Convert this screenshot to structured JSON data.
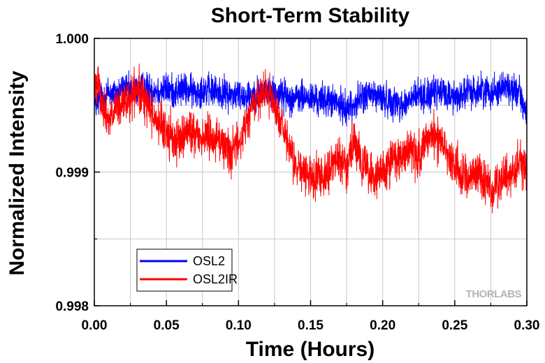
{
  "chart_data": {
    "type": "line",
    "title": "Short-Term Stability",
    "xlabel": "Time (Hours)",
    "ylabel": "Normalized Intensity",
    "xlim": [
      0.0,
      0.3
    ],
    "ylim": [
      0.998,
      1.0
    ],
    "x_ticks": [
      "0.00",
      "0.05",
      "0.10",
      "0.15",
      "0.20",
      "0.25",
      "0.30"
    ],
    "y_ticks": [
      "0.998",
      "0.999",
      "1.000"
    ],
    "grid": true,
    "legend_position": "bottom-left",
    "watermark": "THORLABS",
    "series": [
      {
        "name": "OSL2",
        "color": "#0000ff",
        "x": [
          0.0,
          0.005,
          0.01,
          0.015,
          0.02,
          0.025,
          0.03,
          0.035,
          0.04,
          0.045,
          0.05,
          0.055,
          0.06,
          0.065,
          0.07,
          0.075,
          0.08,
          0.085,
          0.09,
          0.095,
          0.1,
          0.105,
          0.11,
          0.115,
          0.12,
          0.125,
          0.13,
          0.135,
          0.14,
          0.145,
          0.15,
          0.155,
          0.16,
          0.165,
          0.17,
          0.175,
          0.18,
          0.185,
          0.19,
          0.195,
          0.2,
          0.205,
          0.21,
          0.215,
          0.22,
          0.225,
          0.23,
          0.235,
          0.24,
          0.245,
          0.25,
          0.255,
          0.26,
          0.265,
          0.27,
          0.275,
          0.28,
          0.285,
          0.29,
          0.295,
          0.3
        ],
        "y": [
          0.9995,
          0.99955,
          0.9996,
          0.99958,
          0.99962,
          0.9996,
          0.99962,
          0.99963,
          0.99962,
          0.99961,
          0.99962,
          0.9996,
          0.99962,
          0.99961,
          0.9996,
          0.99962,
          0.99961,
          0.9996,
          0.99959,
          0.99958,
          0.99958,
          0.99957,
          0.99958,
          0.9996,
          0.99961,
          0.9996,
          0.99958,
          0.99956,
          0.99955,
          0.99956,
          0.99955,
          0.99954,
          0.99954,
          0.99953,
          0.9995,
          0.99948,
          0.9995,
          0.99956,
          0.99958,
          0.99957,
          0.99955,
          0.99953,
          0.99952,
          0.9995,
          0.99955,
          0.99958,
          0.99957,
          0.99958,
          0.9996,
          0.99958,
          0.99956,
          0.99958,
          0.9996,
          0.9996,
          0.99962,
          0.9996,
          0.99962,
          0.99965,
          0.9996,
          0.99962,
          0.9994
        ],
        "noise": 6e-05
      },
      {
        "name": "OSL2IR",
        "color": "#ff0000",
        "x": [
          0.0,
          0.003,
          0.005,
          0.01,
          0.015,
          0.02,
          0.025,
          0.03,
          0.035,
          0.04,
          0.045,
          0.05,
          0.055,
          0.06,
          0.065,
          0.07,
          0.075,
          0.08,
          0.085,
          0.09,
          0.095,
          0.1,
          0.105,
          0.11,
          0.115,
          0.12,
          0.125,
          0.13,
          0.135,
          0.14,
          0.145,
          0.15,
          0.155,
          0.16,
          0.165,
          0.17,
          0.175,
          0.18,
          0.185,
          0.19,
          0.195,
          0.2,
          0.205,
          0.21,
          0.215,
          0.22,
          0.225,
          0.23,
          0.235,
          0.24,
          0.245,
          0.25,
          0.255,
          0.26,
          0.265,
          0.27,
          0.275,
          0.28,
          0.285,
          0.29,
          0.295,
          0.3
        ],
        "y": [
          0.9996,
          0.99975,
          0.9995,
          0.9994,
          0.99945,
          0.9995,
          0.99955,
          0.9996,
          0.99955,
          0.99945,
          0.99935,
          0.9993,
          0.99925,
          0.99925,
          0.9993,
          0.9993,
          0.99925,
          0.99928,
          0.99925,
          0.9992,
          0.99915,
          0.9992,
          0.99935,
          0.9995,
          0.99955,
          0.9996,
          0.9995,
          0.99935,
          0.99915,
          0.99905,
          0.999,
          0.99895,
          0.99898,
          0.999,
          0.99905,
          0.9991,
          0.99905,
          0.9992,
          0.9991,
          0.999,
          0.99895,
          0.999,
          0.99905,
          0.9991,
          0.99915,
          0.99915,
          0.9991,
          0.99925,
          0.99928,
          0.99925,
          0.99915,
          0.99905,
          0.999,
          0.99895,
          0.999,
          0.99895,
          0.99885,
          0.9989,
          0.99895,
          0.999,
          0.9991,
          0.999
        ],
        "noise": 8e-05
      }
    ]
  }
}
